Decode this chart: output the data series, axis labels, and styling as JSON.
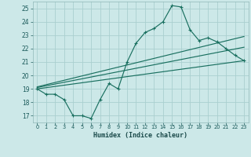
{
  "xlabel": "Humidex (Indice chaleur)",
  "bg_color": "#cce8e8",
  "grid_color": "#aacfcf",
  "line_color": "#1a7060",
  "xlim": [
    -0.5,
    23.5
  ],
  "ylim": [
    16.5,
    25.5
  ],
  "yticks": [
    17,
    18,
    19,
    20,
    21,
    22,
    23,
    24,
    25
  ],
  "xticks": [
    0,
    1,
    2,
    3,
    4,
    5,
    6,
    7,
    8,
    9,
    10,
    11,
    12,
    13,
    14,
    15,
    16,
    17,
    18,
    19,
    20,
    21,
    22,
    23
  ],
  "main_x": [
    0,
    1,
    2,
    3,
    4,
    5,
    6,
    7,
    8,
    9,
    10,
    11,
    12,
    13,
    14,
    15,
    16,
    17,
    18,
    19,
    20,
    21,
    22,
    23
  ],
  "main_y": [
    19.0,
    18.6,
    18.6,
    18.2,
    17.0,
    17.0,
    16.8,
    18.2,
    19.4,
    19.0,
    21.0,
    22.4,
    23.2,
    23.5,
    24.0,
    25.2,
    25.1,
    23.4,
    22.6,
    22.8,
    22.5,
    22.0,
    21.5,
    21.1
  ],
  "line1_x": [
    0,
    23
  ],
  "line1_y": [
    19.0,
    21.1
  ],
  "line2_x": [
    0,
    23
  ],
  "line2_y": [
    19.1,
    22.1
  ],
  "line3_x": [
    0,
    23
  ],
  "line3_y": [
    19.15,
    22.9
  ]
}
